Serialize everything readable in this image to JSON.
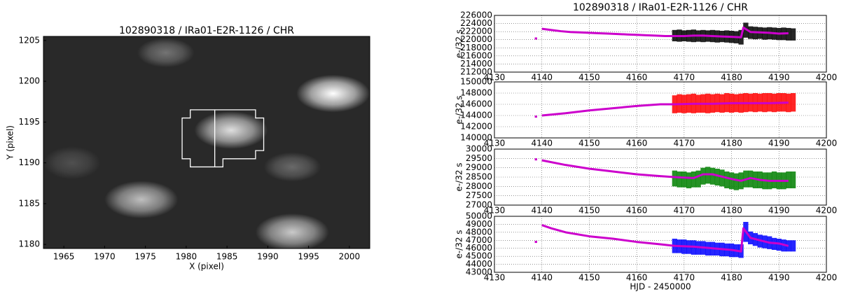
{
  "chart_data": [
    {
      "type": "image",
      "title": "102890318 / IRa01-E2R-1126 / CHR",
      "xlabel": "X (pixel)",
      "ylabel": "Y (pixel)",
      "xlim": [
        1962.5,
        2002.5
      ],
      "ylim": [
        1179.5,
        1205.5
      ],
      "xticks": [
        1965,
        1970,
        1975,
        1980,
        1985,
        1990,
        1995,
        2000
      ],
      "yticks": [
        1180,
        1185,
        1190,
        1195,
        1200,
        1205
      ],
      "background": 0.16,
      "sources": [
        {
          "x": 1998,
          "y": 1198.5,
          "sx": 4.5,
          "sy": 2.3,
          "amp": 1.0
        },
        {
          "x": 1985.5,
          "y": 1194,
          "sx": 4.5,
          "sy": 2.3,
          "amp": 0.85
        },
        {
          "x": 1974.5,
          "y": 1185.5,
          "sx": 4.5,
          "sy": 2.3,
          "amp": 0.7
        },
        {
          "x": 1993,
          "y": 1181.5,
          "sx": 4.5,
          "sy": 2.3,
          "amp": 0.75
        },
        {
          "x": 1977.5,
          "y": 1203.5,
          "sx": 3.5,
          "sy": 1.8,
          "amp": 0.35
        },
        {
          "x": 1993,
          "y": 1189.5,
          "sx": 3.5,
          "sy": 1.8,
          "amp": 0.3
        },
        {
          "x": 1966,
          "y": 1190,
          "sx": 3.5,
          "sy": 2,
          "amp": 0.18
        }
      ],
      "aperture": [
        [
          1980.5,
          1196.5
        ],
        [
          1988.5,
          1196.5
        ],
        [
          1988.5,
          1195.5
        ],
        [
          1989.5,
          1195.5
        ],
        [
          1989.5,
          1191.5
        ],
        [
          1988.5,
          1191.5
        ],
        [
          1988.5,
          1190.5
        ],
        [
          1984.5,
          1190.5
        ],
        [
          1984.5,
          1189.5
        ],
        [
          1980.5,
          1189.5
        ],
        [
          1980.5,
          1190.5
        ],
        [
          1979.5,
          1190.5
        ],
        [
          1979.5,
          1195.5
        ],
        [
          1980.5,
          1195.5
        ]
      ],
      "aperture_divider": [
        [
          1983.5,
          1196.5
        ],
        [
          1983.5,
          1189.5
        ]
      ]
    },
    {
      "type": "line",
      "title": "102890318 / IRa01-E2R-1126 / CHR",
      "ylabel": "e-/32 s",
      "grid": true,
      "xlim": [
        4130,
        4200
      ],
      "xticks": [
        4130,
        4140,
        4150,
        4160,
        4170,
        4180,
        4190,
        4200
      ],
      "ylim": [
        212000,
        226000
      ],
      "yticks": [
        212000,
        214000,
        216000,
        218000,
        220000,
        222000,
        224000,
        226000
      ],
      "band": {
        "color": "#000000",
        "x": [
          4168,
          4169,
          4170,
          4171,
          4172,
          4173,
          4174,
          4175,
          4176,
          4177,
          4178,
          4179,
          4180,
          4181,
          4182,
          4183,
          4184,
          4185,
          4186,
          4187,
          4188,
          4189,
          4190,
          4191,
          4192,
          4193
        ],
        "low": [
          219600,
          219500,
          219600,
          219500,
          219400,
          219500,
          219400,
          219500,
          219400,
          219300,
          219400,
          219300,
          219200,
          219100,
          218800,
          220500,
          220200,
          220100,
          220200,
          220000,
          220100,
          220000,
          219900,
          219900,
          219800,
          219800
        ],
        "high": [
          222400,
          222500,
          222300,
          222400,
          222500,
          222300,
          222400,
          222300,
          222400,
          222300,
          222200,
          222300,
          222200,
          222100,
          222400,
          224200,
          223300,
          223200,
          223100,
          223000,
          223100,
          223000,
          222900,
          223000,
          222900,
          222800
        ]
      },
      "series": [
        {
          "color": "#cc00cc",
          "x": [
            4138.5,
            4139,
            4139.5,
            4140,
            4142,
            4144,
            4146,
            4148,
            4150,
            4152,
            4154,
            4156,
            4158,
            4160,
            4162,
            4164,
            4166,
            4168,
            4170,
            4172,
            4174,
            4176,
            4178,
            4180,
            4182,
            4182.5,
            4184,
            4186,
            4188,
            4190,
            4192
          ],
          "values": [
            220300,
            220300,
            null,
            222700,
            222400,
            222100,
            221900,
            221800,
            221700,
            221600,
            221500,
            221400,
            221300,
            221200,
            221100,
            221000,
            220900,
            220900,
            220900,
            221000,
            221000,
            220900,
            220800,
            220700,
            220600,
            223000,
            221900,
            221800,
            221700,
            221500,
            221600
          ]
        }
      ]
    },
    {
      "type": "line",
      "ylabel": "e-/32 s",
      "grid": true,
      "xlim": [
        4130,
        4200
      ],
      "xticks": [
        4130,
        4140,
        4150,
        4160,
        4170,
        4180,
        4190,
        4200
      ],
      "ylim": [
        140000,
        150000
      ],
      "yticks": [
        140000,
        142000,
        144000,
        146000,
        148000,
        150000
      ],
      "band": {
        "color": "#ff0000",
        "x": [
          4168,
          4169,
          4170,
          4171,
          4172,
          4173,
          4174,
          4175,
          4176,
          4177,
          4178,
          4179,
          4180,
          4181,
          4182,
          4183,
          4184,
          4185,
          4186,
          4187,
          4188,
          4189,
          4190,
          4191,
          4192,
          4193
        ],
        "low": [
          144400,
          144500,
          144400,
          144500,
          144400,
          144500,
          144500,
          144400,
          144500,
          144600,
          144500,
          144600,
          144500,
          144600,
          144500,
          144600,
          144700,
          144600,
          144700,
          144600,
          144700,
          144600,
          144700,
          144700,
          144600,
          144700
        ],
        "high": [
          147600,
          147800,
          147700,
          147800,
          147900,
          147700,
          147800,
          147900,
          147800,
          147900,
          147800,
          148000,
          147900,
          147800,
          147900,
          148000,
          147900,
          148000,
          147900,
          148000,
          148000,
          147900,
          148000,
          148000,
          147900,
          148000
        ]
      },
      "series": [
        {
          "color": "#cc00cc",
          "x": [
            4138.5,
            4139,
            4139.5,
            4140,
            4145,
            4150,
            4155,
            4160,
            4165,
            4168,
            4172,
            4176,
            4180,
            4184,
            4188,
            4192
          ],
          "values": [
            143800,
            143800,
            null,
            144000,
            144400,
            144900,
            145300,
            145700,
            146000,
            146000,
            146100,
            146100,
            146200,
            146200,
            146200,
            146300
          ]
        }
      ]
    },
    {
      "type": "line",
      "ylabel": "e-/32 s",
      "grid": true,
      "xlim": [
        4130,
        4200
      ],
      "xticks": [
        4130,
        4140,
        4150,
        4160,
        4170,
        4180,
        4190,
        4200
      ],
      "ylim": [
        27000,
        30000
      ],
      "yticks": [
        27000,
        27500,
        28000,
        28500,
        29000,
        29500,
        30000
      ],
      "band": {
        "color": "#008000",
        "x": [
          4168,
          4169,
          4170,
          4171,
          4172,
          4173,
          4174,
          4175,
          4176,
          4177,
          4178,
          4179,
          4180,
          4181,
          4182,
          4183,
          4184,
          4185,
          4186,
          4187,
          4188,
          4189,
          4190,
          4191,
          4192,
          4193
        ],
        "low": [
          28000,
          27950,
          27950,
          27900,
          27950,
          27950,
          28100,
          28150,
          28100,
          28050,
          28000,
          27900,
          27850,
          27800,
          27850,
          27950,
          27950,
          27900,
          27900,
          27850,
          27850,
          27900,
          27850,
          27850,
          27900,
          27900
        ],
        "high": [
          28850,
          28800,
          28800,
          28750,
          28800,
          28850,
          29000,
          29050,
          29000,
          28950,
          28900,
          28800,
          28750,
          28700,
          28750,
          28850,
          28850,
          28800,
          28800,
          28750,
          28750,
          28800,
          28750,
          28750,
          28800,
          28800
        ]
      },
      "series": [
        {
          "color": "#cc00cc",
          "x": [
            4138.5,
            4139,
            4139.5,
            4140,
            4145,
            4150,
            4155,
            4160,
            4165,
            4168,
            4172,
            4174,
            4176,
            4180,
            4182,
            4184,
            4186,
            4188,
            4192
          ],
          "values": [
            29450,
            29450,
            null,
            29400,
            29150,
            28950,
            28800,
            28650,
            28550,
            28500,
            28450,
            28650,
            28650,
            28400,
            28300,
            28450,
            28350,
            28300,
            28300
          ]
        }
      ]
    },
    {
      "type": "line",
      "ylabel": "e-/32 s",
      "xlabel": "HJD - 2450000",
      "grid": true,
      "xlim": [
        4130,
        4200
      ],
      "xticks": [
        4130,
        4140,
        4150,
        4160,
        4170,
        4180,
        4190,
        4200
      ],
      "ylim": [
        43000,
        50000
      ],
      "yticks": [
        43000,
        44000,
        45000,
        46000,
        47000,
        48000,
        49000,
        50000
      ],
      "band": {
        "color": "#0000ff",
        "x": [
          4168,
          4169,
          4170,
          4171,
          4172,
          4173,
          4174,
          4175,
          4176,
          4177,
          4178,
          4179,
          4180,
          4181,
          4182,
          4183,
          4184,
          4185,
          4186,
          4187,
          4188,
          4189,
          4190,
          4191,
          4192,
          4193
        ],
        "low": [
          45400,
          45400,
          45300,
          45300,
          45200,
          45200,
          45200,
          45100,
          45100,
          45100,
          45000,
          45000,
          44900,
          44900,
          44800,
          46800,
          46500,
          46300,
          46100,
          46000,
          45900,
          45800,
          45700,
          45600,
          45600,
          45600
        ],
        "high": [
          47200,
          47100,
          47100,
          47000,
          47000,
          46900,
          46900,
          46800,
          46800,
          46700,
          46700,
          46600,
          46600,
          46500,
          46500,
          49300,
          48100,
          47900,
          47700,
          47600,
          47500,
          47300,
          47200,
          47100,
          47000,
          47000
        ]
      },
      "series": [
        {
          "color": "#cc00cc",
          "x": [
            4138.5,
            4139,
            4139.5,
            4140,
            4142,
            4145,
            4150,
            4155,
            4160,
            4165,
            4168,
            4172,
            4176,
            4180,
            4182,
            4182.5,
            4184,
            4186,
            4188,
            4190,
            4192
          ],
          "values": [
            46800,
            46800,
            null,
            48900,
            48500,
            48000,
            47500,
            47200,
            46800,
            46500,
            46300,
            46200,
            46000,
            45800,
            45600,
            48500,
            47300,
            47000,
            46700,
            46600,
            46300
          ]
        }
      ]
    }
  ]
}
